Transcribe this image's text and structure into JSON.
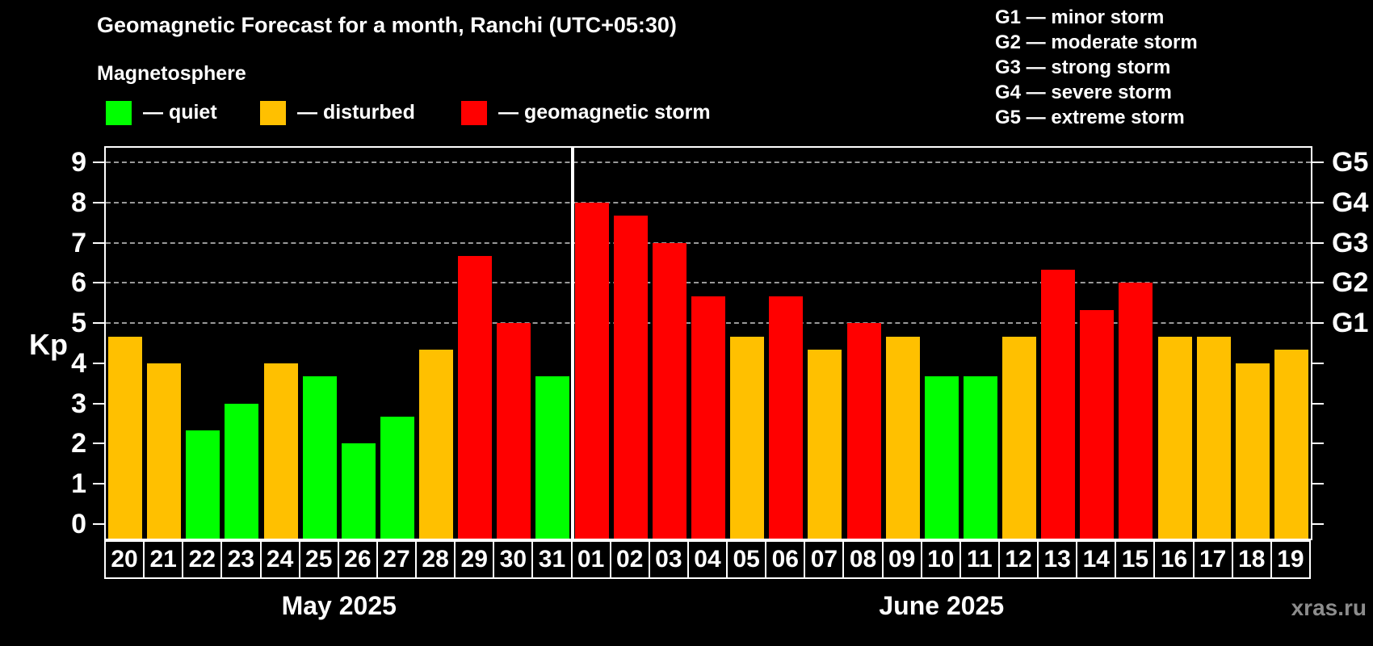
{
  "header": {
    "title": "Geomagnetic Forecast for a month, Ranchi (UTC+05:30)",
    "subtitle": "Magnetosphere",
    "watermark": "xras.ru"
  },
  "legend": {
    "items": [
      {
        "key": "quiet",
        "label": "— quiet",
        "color": "#00ff00"
      },
      {
        "key": "disturbed",
        "label": "— disturbed",
        "color": "#ffc000"
      },
      {
        "key": "storm",
        "label": "— geomagnetic storm",
        "color": "#ff0000"
      }
    ]
  },
  "g_legend": {
    "items": [
      "G1 — minor storm",
      "G2 — moderate storm",
      "G3 — strong storm",
      "G4 — severe storm",
      "G5 — extreme storm"
    ]
  },
  "status_colors": {
    "quiet": "#00ff00",
    "disturbed": "#ffc000",
    "storm": "#ff0000"
  },
  "chart_data": {
    "type": "bar",
    "title": "Geomagnetic Forecast for a month, Ranchi (UTC+05:30)",
    "ylabel": "Kp",
    "ylim": [
      0,
      9
    ],
    "grid": "dashed horizontal at Kp 5-9",
    "gridlines": [
      5,
      6,
      7,
      8,
      9
    ],
    "y_ticks": [
      0,
      1,
      2,
      3,
      4,
      5,
      6,
      7,
      8,
      9
    ],
    "right_axis_labels": [
      {
        "value": 5,
        "label": "G1"
      },
      {
        "value": 6,
        "label": "G2"
      },
      {
        "value": 7,
        "label": "G3"
      },
      {
        "value": 8,
        "label": "G4"
      },
      {
        "value": 9,
        "label": "G5"
      }
    ],
    "groups": [
      {
        "label": "May 2025",
        "days": [
          {
            "day": "20",
            "kp": 4.67,
            "status": "disturbed"
          },
          {
            "day": "21",
            "kp": 4.0,
            "status": "disturbed"
          },
          {
            "day": "22",
            "kp": 2.33,
            "status": "quiet"
          },
          {
            "day": "23",
            "kp": 3.0,
            "status": "quiet"
          },
          {
            "day": "24",
            "kp": 4.0,
            "status": "disturbed"
          },
          {
            "day": "25",
            "kp": 3.67,
            "status": "quiet"
          },
          {
            "day": "26",
            "kp": 2.0,
            "status": "quiet"
          },
          {
            "day": "27",
            "kp": 2.67,
            "status": "quiet"
          },
          {
            "day": "28",
            "kp": 4.33,
            "status": "disturbed"
          },
          {
            "day": "29",
            "kp": 6.67,
            "status": "storm"
          },
          {
            "day": "30",
            "kp": 5.0,
            "status": "storm"
          },
          {
            "day": "31",
            "kp": 3.67,
            "status": "quiet"
          }
        ]
      },
      {
        "label": "June 2025",
        "days": [
          {
            "day": "01",
            "kp": 8.0,
            "status": "storm"
          },
          {
            "day": "02",
            "kp": 7.67,
            "status": "storm"
          },
          {
            "day": "03",
            "kp": 7.0,
            "status": "storm"
          },
          {
            "day": "04",
            "kp": 5.67,
            "status": "storm"
          },
          {
            "day": "05",
            "kp": 4.67,
            "status": "disturbed"
          },
          {
            "day": "06",
            "kp": 5.67,
            "status": "storm"
          },
          {
            "day": "07",
            "kp": 4.33,
            "status": "disturbed"
          },
          {
            "day": "08",
            "kp": 5.0,
            "status": "storm"
          },
          {
            "day": "09",
            "kp": 4.67,
            "status": "disturbed"
          },
          {
            "day": "10",
            "kp": 3.67,
            "status": "quiet"
          },
          {
            "day": "11",
            "kp": 3.67,
            "status": "quiet"
          },
          {
            "day": "12",
            "kp": 4.67,
            "status": "disturbed"
          },
          {
            "day": "13",
            "kp": 6.33,
            "status": "storm"
          },
          {
            "day": "14",
            "kp": 5.33,
            "status": "storm"
          },
          {
            "day": "15",
            "kp": 6.0,
            "status": "storm"
          },
          {
            "day": "16",
            "kp": 4.67,
            "status": "disturbed"
          },
          {
            "day": "17",
            "kp": 4.67,
            "status": "disturbed"
          },
          {
            "day": "18",
            "kp": 4.0,
            "status": "disturbed"
          },
          {
            "day": "19",
            "kp": 4.33,
            "status": "disturbed"
          }
        ]
      }
    ]
  }
}
